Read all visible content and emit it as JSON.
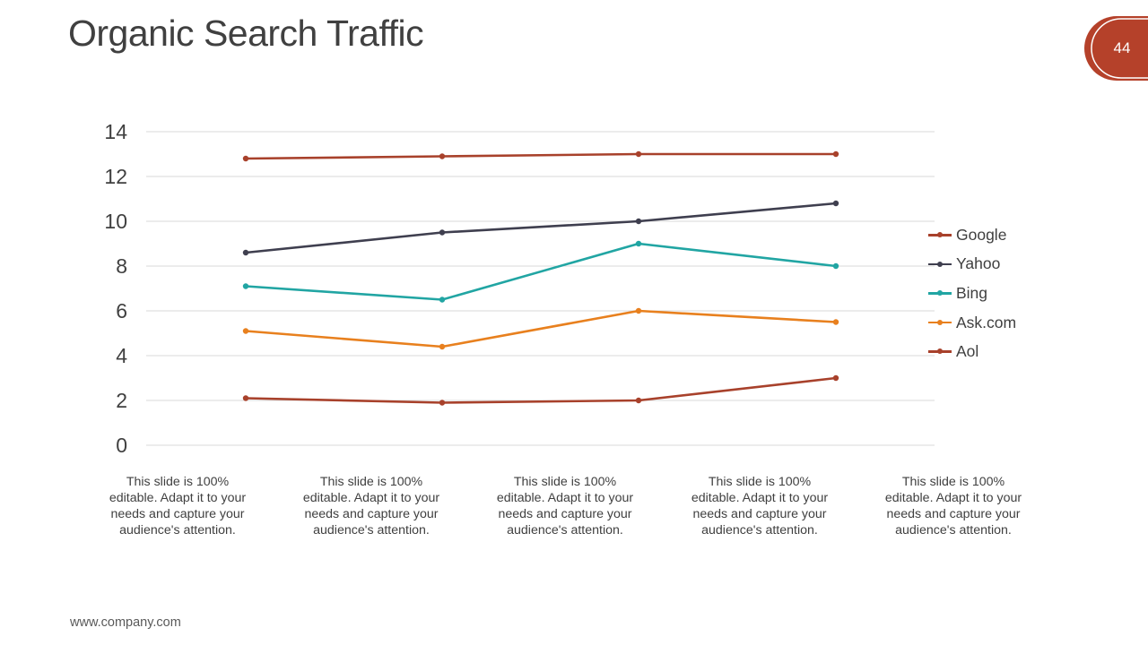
{
  "slide": {
    "title": "Organic Search Traffic",
    "page_number": "44",
    "footer": "www.company.com",
    "accent_color": "#b5412a"
  },
  "captions": [
    "This slide is 100% editable. Adapt it to your needs and capture your audience's attention.",
    "This slide is 100% editable. Adapt it to your needs and capture your audience's attention.",
    "This slide is 100% editable. Adapt it to your needs and capture your audience's attention.",
    "This slide is 100% editable. Adapt it to your needs and capture your audience's attention.",
    "This slide is 100% editable. Adapt it to your needs and capture your audience's attention."
  ],
  "chart_data": {
    "type": "line",
    "title": "",
    "xlabel": "",
    "ylabel": "",
    "ylim": [
      0,
      14
    ],
    "yticks": [
      "0",
      "2",
      "4",
      "6",
      "8",
      "10",
      "12",
      "14"
    ],
    "grid": true,
    "legend_position": "right",
    "series": [
      {
        "name": "Google",
        "color": "#a8412b",
        "values": [
          12.8,
          12.9,
          13.0,
          13.0
        ]
      },
      {
        "name": "Yahoo",
        "color": "#3f3f4f",
        "values": [
          8.6,
          9.5,
          10.0,
          10.8
        ]
      },
      {
        "name": "Bing",
        "color": "#21a5a3",
        "values": [
          7.1,
          6.5,
          9.0,
          8.0
        ]
      },
      {
        "name": "Ask.com",
        "color": "#e8801e",
        "values": [
          5.1,
          4.4,
          6.0,
          5.5
        ]
      },
      {
        "name": "Aol",
        "color": "#a8412b",
        "values": [
          2.1,
          1.9,
          2.0,
          3.0
        ]
      }
    ]
  }
}
